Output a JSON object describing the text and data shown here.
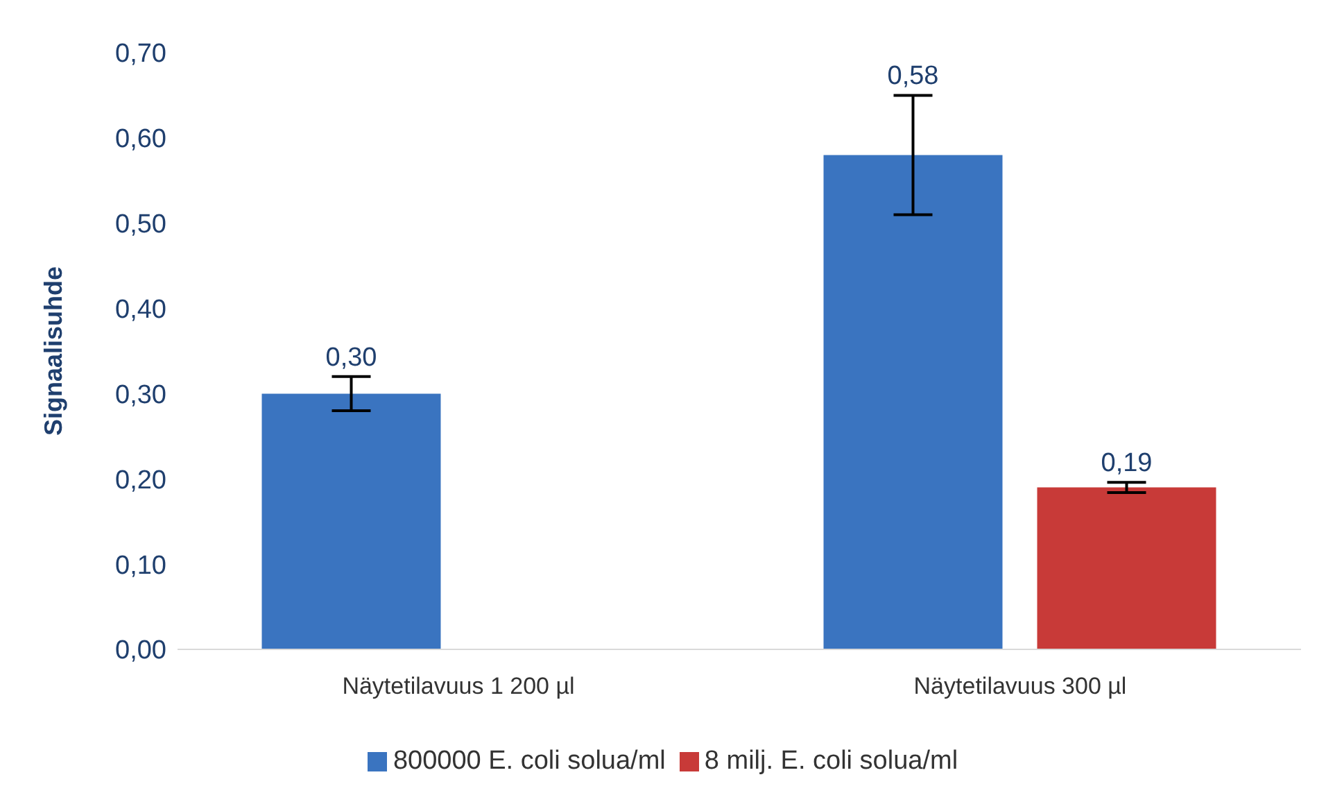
{
  "chart_data": {
    "type": "bar",
    "ylabel": "Signaalisuhde",
    "categories": [
      "Näytetilavuus 1 200 µl",
      "Näytetilavuus 300 µl"
    ],
    "series": [
      {
        "name": "800000 E. coli solua/ml",
        "color": "#3a74c0",
        "values": [
          0.3,
          0.58
        ],
        "errors": [
          0.02,
          0.07
        ],
        "value_labels": [
          "0,30",
          "0,58"
        ]
      },
      {
        "name": "8 milj. E. coli solua/ml",
        "color": "#c83a38",
        "values": [
          null,
          0.19
        ],
        "errors": [
          null,
          0.006
        ],
        "value_labels": [
          null,
          "0,19"
        ]
      }
    ],
    "ylim": [
      0,
      0.7
    ],
    "yticks": [
      {
        "value": 0,
        "label": "0,00"
      },
      {
        "value": 0.1,
        "label": "0,10"
      },
      {
        "value": 0.2,
        "label": "0,20"
      },
      {
        "value": 0.3,
        "label": "0,30"
      },
      {
        "value": 0.4,
        "label": "0,40"
      },
      {
        "value": 0.5,
        "label": "0,50"
      },
      {
        "value": 0.6,
        "label": "0,60"
      },
      {
        "value": 0.7,
        "label": "0,70"
      }
    ],
    "grid": false,
    "legend": "bottom"
  }
}
